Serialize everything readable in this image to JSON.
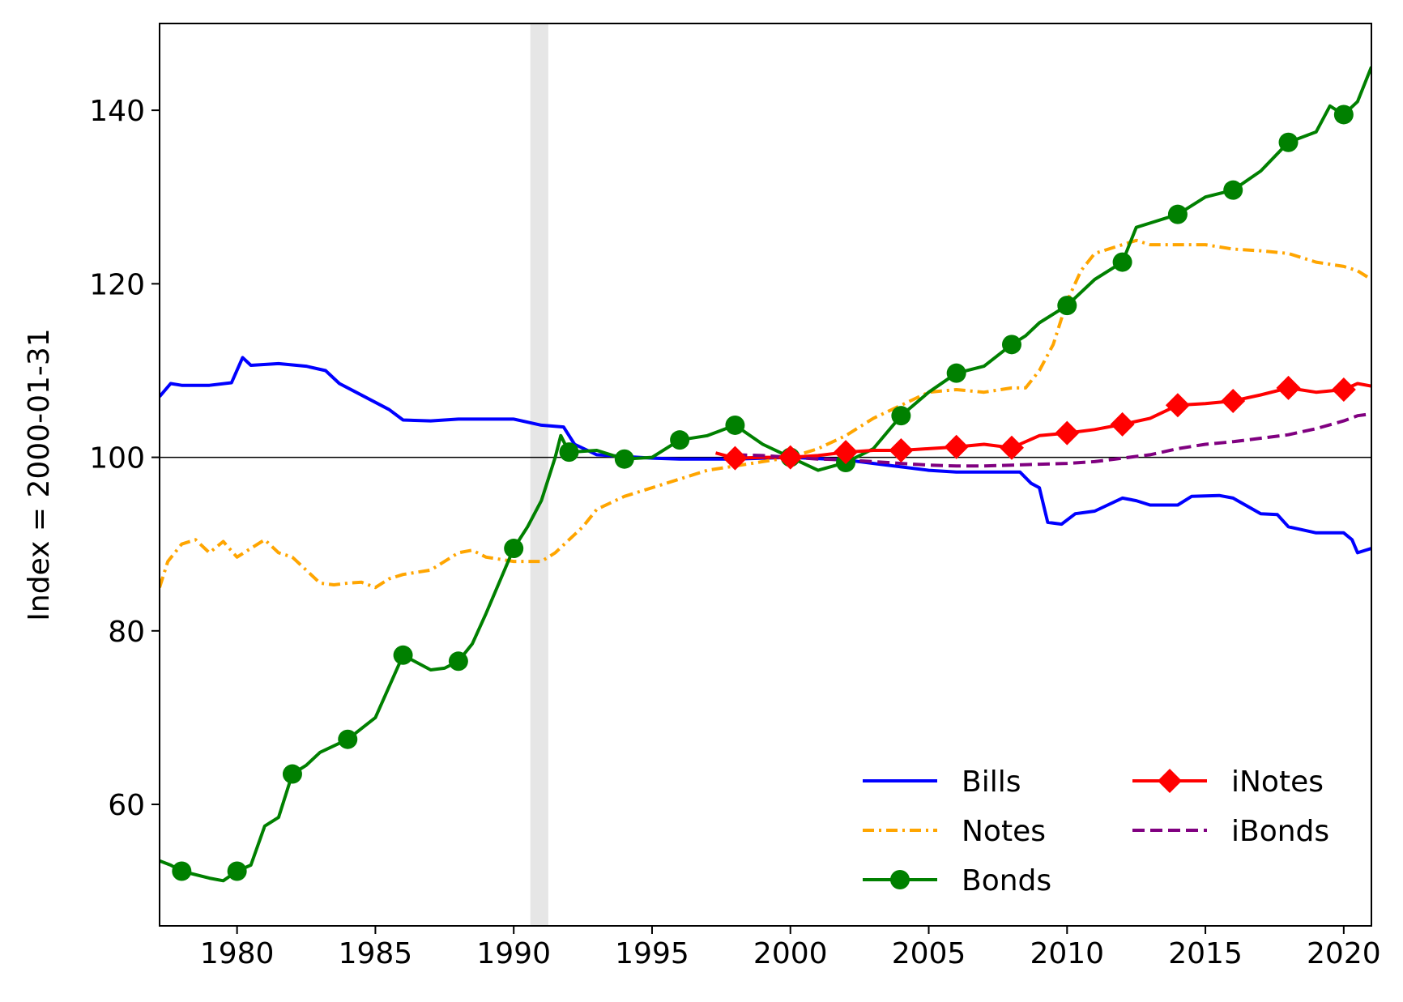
{
  "chart_data": {
    "type": "line",
    "title": "",
    "xlabel": "",
    "ylabel": "Index = 2000-01-31",
    "xlim": [
      1977.2,
      2021.0
    ],
    "ylim": [
      46,
      150
    ],
    "x_ticks": [
      1980,
      1985,
      1990,
      1995,
      2000,
      2005,
      2010,
      2015,
      2020
    ],
    "x_tick_labels": [
      "1980",
      "1985",
      "1990",
      "1995",
      "2000",
      "2005",
      "2010",
      "2015",
      "2020"
    ],
    "y_ticks": [
      60,
      80,
      100,
      120,
      140
    ],
    "y_tick_labels": [
      "60",
      "80",
      "100",
      "120",
      "140"
    ],
    "grid": false,
    "legend_position": "lower-right",
    "reference_line": 100,
    "shaded_band": {
      "x_start": 1990.6,
      "x_end": 1991.25
    },
    "series": [
      {
        "name": "Bills",
        "color": "#0000ff",
        "style": "solid",
        "marker": "none",
        "points": [
          [
            1977.2,
            107
          ],
          [
            1977.6,
            108.5
          ],
          [
            1978,
            108.3
          ],
          [
            1979,
            108.3
          ],
          [
            1979.8,
            108.6
          ],
          [
            1980.2,
            111.5
          ],
          [
            1980.5,
            110.6
          ],
          [
            1981.5,
            110.8
          ],
          [
            1982.5,
            110.5
          ],
          [
            1983.2,
            110
          ],
          [
            1983.7,
            108.5
          ],
          [
            1984.3,
            107.5
          ],
          [
            1985.5,
            105.5
          ],
          [
            1986,
            104.3
          ],
          [
            1987,
            104.2
          ],
          [
            1988,
            104.4
          ],
          [
            1989,
            104.4
          ],
          [
            1990,
            104.4
          ],
          [
            1991,
            103.7
          ],
          [
            1991.8,
            103.5
          ],
          [
            1992.2,
            101.5
          ],
          [
            1993,
            100.3
          ],
          [
            1995,
            99.9
          ],
          [
            1996,
            99.8
          ],
          [
            1998,
            99.8
          ],
          [
            2000,
            100
          ],
          [
            2002,
            99.7
          ],
          [
            2003,
            99.3
          ],
          [
            2005,
            98.5
          ],
          [
            2006,
            98.3
          ],
          [
            2007,
            98.3
          ],
          [
            2008.3,
            98.3
          ],
          [
            2008.7,
            97
          ],
          [
            2009,
            96.5
          ],
          [
            2009.3,
            92.5
          ],
          [
            2009.8,
            92.3
          ],
          [
            2010.3,
            93.5
          ],
          [
            2011,
            93.8
          ],
          [
            2012,
            95.3
          ],
          [
            2012.5,
            95
          ],
          [
            2013,
            94.5
          ],
          [
            2014,
            94.5
          ],
          [
            2014.5,
            95.5
          ],
          [
            2015.5,
            95.6
          ],
          [
            2016,
            95.3
          ],
          [
            2017,
            93.5
          ],
          [
            2017.6,
            93.4
          ],
          [
            2018,
            92
          ],
          [
            2019,
            91.3
          ],
          [
            2020,
            91.3
          ],
          [
            2020.3,
            90.5
          ],
          [
            2020.5,
            89
          ],
          [
            2021,
            89.5
          ]
        ]
      },
      {
        "name": "Notes",
        "color": "#ffa500",
        "style": "dashdot",
        "marker": "none",
        "points": [
          [
            1977.2,
            85
          ],
          [
            1977.5,
            88
          ],
          [
            1978,
            90
          ],
          [
            1978.5,
            90.5
          ],
          [
            1979,
            89
          ],
          [
            1979.5,
            90.3
          ],
          [
            1980,
            88.5
          ],
          [
            1980.5,
            89.5
          ],
          [
            1981,
            90.5
          ],
          [
            1981.5,
            89
          ],
          [
            1982,
            88.5
          ],
          [
            1982.5,
            87
          ],
          [
            1983,
            85.5
          ],
          [
            1983.5,
            85.3
          ],
          [
            1984,
            85.5
          ],
          [
            1984.5,
            85.6
          ],
          [
            1985,
            85
          ],
          [
            1985.5,
            86
          ],
          [
            1986,
            86.5
          ],
          [
            1987,
            87
          ],
          [
            1988,
            89
          ],
          [
            1988.5,
            89.3
          ],
          [
            1989,
            88.5
          ],
          [
            1990,
            88
          ],
          [
            1991,
            88
          ],
          [
            1991.5,
            89
          ],
          [
            1992,
            90.5
          ],
          [
            1992.5,
            92
          ],
          [
            1993,
            94
          ],
          [
            1994,
            95.5
          ],
          [
            1995,
            96.5
          ],
          [
            1996,
            97.5
          ],
          [
            1997,
            98.5
          ],
          [
            1998,
            99
          ],
          [
            1999,
            99.5
          ],
          [
            2000,
            100
          ],
          [
            2001,
            101
          ],
          [
            2002,
            102.5
          ],
          [
            2003,
            104.5
          ],
          [
            2004,
            106
          ],
          [
            2005,
            107.5
          ],
          [
            2006,
            107.8
          ],
          [
            2007,
            107.5
          ],
          [
            2008,
            108
          ],
          [
            2008.5,
            108
          ],
          [
            2009,
            110
          ],
          [
            2009.5,
            113
          ],
          [
            2010,
            118
          ],
          [
            2010.5,
            121.5
          ],
          [
            2011,
            123.5
          ],
          [
            2011.5,
            124
          ],
          [
            2012,
            124.5
          ],
          [
            2012.5,
            125
          ],
          [
            2013,
            124.5
          ],
          [
            2014,
            124.5
          ],
          [
            2015,
            124.5
          ],
          [
            2016,
            124
          ],
          [
            2017,
            123.8
          ],
          [
            2018,
            123.5
          ],
          [
            2019,
            122.5
          ],
          [
            2020,
            122
          ],
          [
            2020.5,
            121.5
          ],
          [
            2021,
            120.5
          ]
        ]
      },
      {
        "name": "Bonds",
        "color": "#008000",
        "style": "solid",
        "marker": "circle",
        "points": [
          [
            1977.2,
            53.5
          ],
          [
            1977.6,
            53
          ],
          [
            1978,
            52.3
          ],
          [
            1979,
            51.5
          ],
          [
            1979.5,
            51.2
          ],
          [
            1980,
            52.3
          ],
          [
            1980.5,
            53
          ],
          [
            1981,
            57.5
          ],
          [
            1981.5,
            58.5
          ],
          [
            1982,
            63.5
          ],
          [
            1982.5,
            64.5
          ],
          [
            1983,
            66
          ],
          [
            1984,
            67.5
          ],
          [
            1985,
            70
          ],
          [
            1986,
            77.2
          ],
          [
            1987,
            75.5
          ],
          [
            1987.5,
            75.7
          ],
          [
            1988,
            76.5
          ],
          [
            1988.5,
            78.5
          ],
          [
            1989,
            82
          ],
          [
            1990,
            89.5
          ],
          [
            1990.5,
            92
          ],
          [
            1991,
            95
          ],
          [
            1991.5,
            100
          ],
          [
            1991.7,
            102.5
          ],
          [
            1992,
            100.6
          ],
          [
            1993,
            100.8
          ],
          [
            1994,
            99.8
          ],
          [
            1995,
            100
          ],
          [
            1996,
            102
          ],
          [
            1997,
            102.5
          ],
          [
            1998,
            103.7
          ],
          [
            1999,
            101.5
          ],
          [
            2000,
            100
          ],
          [
            2001,
            98.5
          ],
          [
            2002,
            99.4
          ],
          [
            2003,
            101
          ],
          [
            2004,
            104.8
          ],
          [
            2005,
            107.5
          ],
          [
            2006,
            109.7
          ],
          [
            2007,
            110.5
          ],
          [
            2008,
            113
          ],
          [
            2008.5,
            114
          ],
          [
            2009,
            115.5
          ],
          [
            2010,
            117.5
          ],
          [
            2011,
            120.5
          ],
          [
            2012,
            122.5
          ],
          [
            2012.5,
            126.5
          ],
          [
            2013,
            127
          ],
          [
            2014,
            128
          ],
          [
            2015,
            130
          ],
          [
            2016,
            130.8
          ],
          [
            2017,
            133
          ],
          [
            2018,
            136.3
          ],
          [
            2019,
            137.5
          ],
          [
            2019.5,
            140.5
          ],
          [
            2020,
            139.5
          ],
          [
            2020.5,
            141
          ],
          [
            2021,
            145
          ]
        ]
      },
      {
        "name": "iNotes",
        "color": "#ff0000",
        "style": "solid",
        "marker": "diamond",
        "points": [
          [
            1997.3,
            100.5
          ],
          [
            1998,
            99.9
          ],
          [
            1999,
            100
          ],
          [
            2000,
            100
          ],
          [
            2001,
            100.2
          ],
          [
            2002,
            100.6
          ],
          [
            2003,
            100.8
          ],
          [
            2004,
            100.8
          ],
          [
            2005,
            101
          ],
          [
            2006,
            101.2
          ],
          [
            2007,
            101.5
          ],
          [
            2008,
            101.1
          ],
          [
            2009,
            102.5
          ],
          [
            2010,
            102.8
          ],
          [
            2011,
            103.2
          ],
          [
            2012,
            103.8
          ],
          [
            2013,
            104.5
          ],
          [
            2014,
            106
          ],
          [
            2015,
            106.2
          ],
          [
            2016,
            106.5
          ],
          [
            2017,
            107.2
          ],
          [
            2018,
            108
          ],
          [
            2019,
            107.5
          ],
          [
            2020,
            107.8
          ],
          [
            2020.5,
            108.5
          ],
          [
            2021,
            108.2
          ]
        ]
      },
      {
        "name": "iBonds",
        "color": "#800080",
        "style": "dashed",
        "marker": "none",
        "points": [
          [
            1998,
            100.3
          ],
          [
            1999,
            100.2
          ],
          [
            2000,
            100
          ],
          [
            2001,
            99.8
          ],
          [
            2002,
            99.7
          ],
          [
            2003,
            99.5
          ],
          [
            2004,
            99.3
          ],
          [
            2005,
            99.1
          ],
          [
            2006,
            99
          ],
          [
            2007,
            99
          ],
          [
            2008,
            99.1
          ],
          [
            2009,
            99.2
          ],
          [
            2010,
            99.3
          ],
          [
            2011,
            99.5
          ],
          [
            2012,
            99.9
          ],
          [
            2013,
            100.3
          ],
          [
            2014,
            101
          ],
          [
            2015,
            101.5
          ],
          [
            2016,
            101.8
          ],
          [
            2017,
            102.2
          ],
          [
            2018,
            102.6
          ],
          [
            2019,
            103.3
          ],
          [
            2020,
            104.2
          ],
          [
            2020.5,
            104.8
          ],
          [
            2021,
            105
          ]
        ]
      }
    ],
    "markers": {
      "Bonds": [
        [
          1978,
          52.3
        ],
        [
          1980,
          52.3
        ],
        [
          1982,
          63.5
        ],
        [
          1984,
          67.5
        ],
        [
          1986,
          77.2
        ],
        [
          1988,
          76.5
        ],
        [
          1990,
          89.5
        ],
        [
          1992,
          100.6
        ],
        [
          1994,
          99.8
        ],
        [
          1996,
          102
        ],
        [
          1998,
          103.7
        ],
        [
          2000,
          100
        ],
        [
          2002,
          99.4
        ],
        [
          2004,
          104.8
        ],
        [
          2006,
          109.7
        ],
        [
          2008,
          113
        ],
        [
          2010,
          117.5
        ],
        [
          2012,
          122.5
        ],
        [
          2014,
          128
        ],
        [
          2016,
          130.8
        ],
        [
          2018,
          136.3
        ],
        [
          2020,
          139.5
        ]
      ],
      "iNotes": [
        [
          1998,
          99.9
        ],
        [
          2000,
          100
        ],
        [
          2002,
          100.6
        ],
        [
          2004,
          100.8
        ],
        [
          2006,
          101.2
        ],
        [
          2008,
          101.1
        ],
        [
          2010,
          102.8
        ],
        [
          2012,
          103.8
        ],
        [
          2014,
          106
        ],
        [
          2016,
          106.5
        ],
        [
          2018,
          108
        ],
        [
          2020,
          107.8
        ]
      ]
    },
    "legend": [
      {
        "label": "Bills",
        "color": "#0000ff",
        "style": "solid",
        "marker": "none"
      },
      {
        "label": "Notes",
        "color": "#ffa500",
        "style": "dashdot",
        "marker": "none"
      },
      {
        "label": "Bonds",
        "color": "#008000",
        "style": "solid",
        "marker": "circle"
      },
      {
        "label": "iNotes",
        "color": "#ff0000",
        "style": "solid",
        "marker": "diamond"
      },
      {
        "label": "iBonds",
        "color": "#800080",
        "style": "dashed",
        "marker": "none"
      }
    ]
  }
}
